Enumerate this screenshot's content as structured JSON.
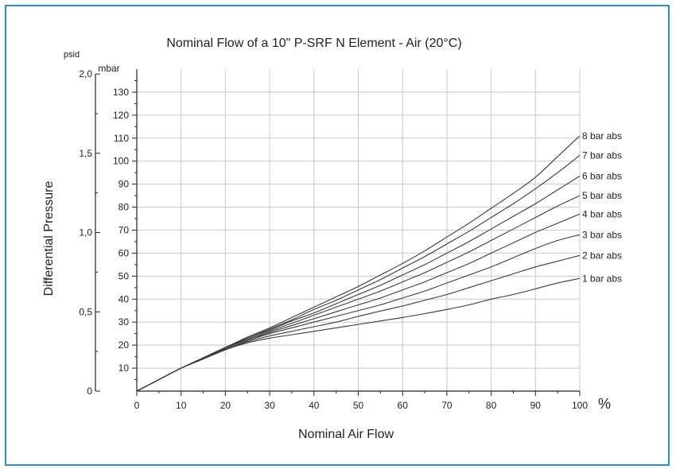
{
  "chart_data": {
    "type": "line",
    "title": "Nominal Flow of a 10\" P-SRF N Element - Air (20°C)",
    "xlabel": "Nominal Air Flow",
    "x_unit": "%",
    "ylabel": "Differential Pressure",
    "y_unit_left": "mbar",
    "y_unit_outer": "psid",
    "xlim": [
      0,
      100
    ],
    "ylim": [
      0,
      140
    ],
    "x_ticks": [
      "0",
      "10",
      "20",
      "30",
      "40",
      "50",
      "60",
      "70",
      "80",
      "90",
      "100"
    ],
    "y_ticks": [
      "10",
      "20",
      "30",
      "40",
      "50",
      "60",
      "70",
      "80",
      "90",
      "100",
      "110",
      "120",
      "130"
    ],
    "y_ticks_psid": [
      "0",
      "0,5",
      "1,0",
      "1,5",
      "2,0"
    ],
    "grid": true,
    "x": [
      0,
      5,
      10,
      15,
      20,
      25,
      30,
      35,
      40,
      45,
      50,
      55,
      60,
      65,
      70,
      75,
      80,
      85,
      90,
      95,
      100
    ],
    "series": [
      {
        "name": "1 bar abs",
        "values": [
          0,
          5,
          10,
          14,
          18,
          21,
          23,
          24.5,
          26,
          27.5,
          29,
          30.5,
          32,
          33.7,
          35.5,
          37.5,
          40,
          42,
          44.5,
          47,
          49
        ]
      },
      {
        "name": "2 bar abs",
        "values": [
          0,
          5,
          10,
          14,
          18,
          21.5,
          24,
          26,
          28,
          30,
          32.5,
          34.8,
          37,
          39.5,
          42,
          45,
          48,
          51,
          54,
          56.5,
          59
        ]
      },
      {
        "name": "3 bar abs",
        "values": [
          0,
          5,
          10,
          14,
          18,
          22,
          25,
          27.5,
          30,
          32.5,
          35,
          37.5,
          40.5,
          43.5,
          47,
          50.5,
          54,
          58,
          62,
          65.5,
          68
        ]
      },
      {
        "name": "4 bar abs",
        "values": [
          0,
          5,
          10,
          14,
          18,
          22,
          25.5,
          28.5,
          31.5,
          34.5,
          37.5,
          40.5,
          44,
          47.5,
          51.5,
          55.5,
          60,
          64.5,
          69,
          73,
          77
        ]
      },
      {
        "name": "5 bar abs",
        "values": [
          0,
          5,
          10,
          14,
          18.5,
          22.5,
          26,
          29.5,
          33,
          36.5,
          40,
          43.5,
          47.5,
          51.5,
          56,
          60.5,
          65.5,
          70.5,
          75.5,
          80.5,
          85
        ]
      },
      {
        "name": "6 bar abs",
        "values": [
          0,
          5,
          10,
          14.5,
          18.5,
          23,
          26.5,
          30.5,
          34,
          38,
          42,
          46,
          50.5,
          55,
          60,
          65,
          70.5,
          76,
          81.5,
          87.5,
          93.5
        ]
      },
      {
        "name": "7 bar abs",
        "values": [
          0,
          5,
          10,
          14.5,
          19,
          23,
          27,
          31,
          35.5,
          39.5,
          44,
          48.5,
          53.5,
          58.5,
          64,
          69.5,
          75.5,
          81.5,
          88,
          95,
          102.5
        ]
      },
      {
        "name": "8 bar abs",
        "values": [
          0,
          5,
          10,
          14.5,
          19,
          23.5,
          27.5,
          32,
          36.5,
          41,
          45.5,
          50.5,
          55.5,
          61,
          67,
          73,
          79.5,
          86,
          93,
          102,
          111
        ]
      }
    ]
  }
}
